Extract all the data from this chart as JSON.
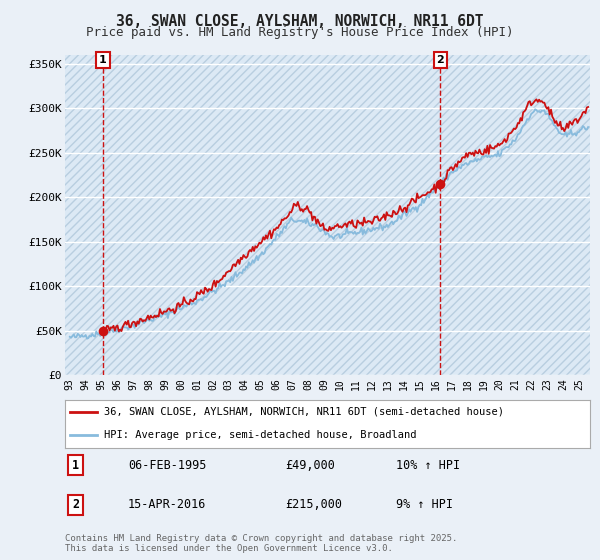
{
  "title": "36, SWAN CLOSE, AYLSHAM, NORWICH, NR11 6DT",
  "subtitle": "Price paid vs. HM Land Registry's House Price Index (HPI)",
  "ylim": [
    0,
    360000
  ],
  "yticks": [
    0,
    50000,
    100000,
    150000,
    200000,
    250000,
    300000,
    350000
  ],
  "ytick_labels": [
    "£0",
    "£50K",
    "£100K",
    "£150K",
    "£200K",
    "£250K",
    "£300K",
    "£350K"
  ],
  "bg_color": "#eaf0f7",
  "plot_bg_color": "#dce9f5",
  "hatch_color": "#b8cee0",
  "grid_color": "#ffffff",
  "line1_color": "#cc1111",
  "line2_color": "#88bbdd",
  "vline_color": "#cc1111",
  "annot_box_color": "#cc1111",
  "legend_line1": "36, SWAN CLOSE, AYLSHAM, NORWICH, NR11 6DT (semi-detached house)",
  "legend_line2": "HPI: Average price, semi-detached house, Broadland",
  "table_row1": [
    "1",
    "06-FEB-1995",
    "£49,000",
    "10% ↑ HPI"
  ],
  "table_row2": [
    "2",
    "15-APR-2016",
    "£215,000",
    "9% ↑ HPI"
  ],
  "footnote": "Contains HM Land Registry data © Crown copyright and database right 2025.\nThis data is licensed under the Open Government Licence v3.0.",
  "marker1_x": 1995.09,
  "marker1_y": 49000,
  "vline1_x": 1995.09,
  "marker2_x": 2016.29,
  "marker2_y": 215000,
  "vline2_x": 2016.29,
  "xmin": 1992.7,
  "xmax": 2025.7
}
